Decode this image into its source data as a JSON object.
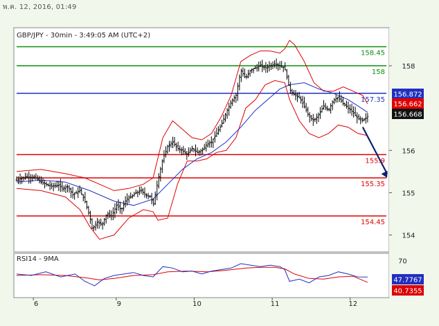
{
  "header": {
    "datestamp": "พ.ค. 12, 2016, 01:49",
    "symbol_info": "GBP/JPY - 30min - 3:49:05 AM (UTC+2)"
  },
  "colors": {
    "page_bg": "#f2f7ec",
    "plot_bg": "#ffffff",
    "candles": "#000000",
    "bollinger": "#dd0000",
    "moving_average": "#1f2fbf",
    "support": "#e00000",
    "pivot": "#1f2fbf",
    "resistance": "#0a8f0a",
    "arrow": "#0d1f6e",
    "rsi": "#1f2fbf",
    "rsi_ma": "#dd0000"
  },
  "chart_data": [
    {
      "type": "candlestick",
      "title": "GBP/JPY - 30min - 3:49:05 AM (UTC+2)",
      "ylim": [
        153.6,
        158.9
      ],
      "y_ticks": [
        154,
        155,
        156,
        158
      ],
      "y_tick_labels": [
        "154",
        "155",
        "156",
        "158"
      ],
      "x_tick_labels": [
        "6",
        "9",
        "10",
        "11",
        "12"
      ],
      "grid": false,
      "levels": [
        {
          "value": 158.45,
          "label": "158.45",
          "role": "resistance"
        },
        {
          "value": 158.0,
          "label": "158",
          "role": "resistance"
        },
        {
          "value": 157.35,
          "label": "157.35",
          "role": "pivot"
        },
        {
          "value": 155.9,
          "label": "155.9",
          "role": "support"
        },
        {
          "value": 155.35,
          "label": "155.35",
          "role": "support"
        },
        {
          "value": 154.45,
          "label": "154.45",
          "role": "support"
        }
      ],
      "price_badges": [
        {
          "label": "156.872",
          "value": 156.872,
          "role": "moving_average"
        },
        {
          "label": "156.662",
          "value": 156.662,
          "role": "bollinger"
        },
        {
          "label": "156.668",
          "value": 156.668,
          "role": "last_price"
        }
      ],
      "arrow": {
        "from": [
          142,
          156.55
        ],
        "to": [
          152,
          155.35
        ]
      },
      "x_positions_of_dates": [
        8,
        42,
        74,
        106,
        138
      ],
      "price_path": [
        [
          0,
          155.3
        ],
        [
          4,
          155.38
        ],
        [
          8,
          155.35
        ],
        [
          10,
          155.25
        ],
        [
          12,
          155.2
        ],
        [
          14,
          155.15
        ],
        [
          17,
          155.18
        ],
        [
          19,
          155.1
        ],
        [
          21,
          155.15
        ],
        [
          23,
          154.95
        ],
        [
          26,
          155.05
        ],
        [
          28,
          154.8
        ],
        [
          30,
          154.45
        ],
        [
          31,
          154.15
        ],
        [
          33,
          154.3
        ],
        [
          35,
          154.25
        ],
        [
          37,
          154.5
        ],
        [
          39,
          154.45
        ],
        [
          41,
          154.7
        ],
        [
          43,
          154.6
        ],
        [
          45,
          154.85
        ],
        [
          47,
          154.9
        ],
        [
          49,
          155.0
        ],
        [
          51,
          155.05
        ],
        [
          53,
          154.95
        ],
        [
          55,
          154.9
        ],
        [
          56,
          154.7
        ],
        [
          58,
          155.3
        ],
        [
          60,
          155.8
        ],
        [
          62,
          156.1
        ],
        [
          64,
          156.2
        ],
        [
          66,
          156.05
        ],
        [
          68,
          156.0
        ],
        [
          70,
          155.9
        ],
        [
          72,
          156.05
        ],
        [
          74,
          155.95
        ],
        [
          76,
          156.0
        ],
        [
          78,
          156.15
        ],
        [
          80,
          156.2
        ],
        [
          82,
          156.4
        ],
        [
          84,
          156.6
        ],
        [
          86,
          156.9
        ],
        [
          88,
          157.15
        ],
        [
          90,
          157.3
        ],
        [
          92,
          157.9
        ],
        [
          94,
          157.7
        ],
        [
          96,
          157.9
        ],
        [
          98,
          157.95
        ],
        [
          100,
          158.0
        ],
        [
          102,
          157.95
        ],
        [
          104,
          158.0
        ],
        [
          106,
          158.05
        ],
        [
          108,
          158.0
        ],
        [
          110,
          157.95
        ],
        [
          112,
          157.45
        ],
        [
          114,
          157.3
        ],
        [
          116,
          157.25
        ],
        [
          118,
          157.05
        ],
        [
          120,
          156.8
        ],
        [
          122,
          156.7
        ],
        [
          124,
          156.85
        ],
        [
          126,
          157.05
        ],
        [
          128,
          156.95
        ],
        [
          130,
          157.2
        ],
        [
          132,
          157.25
        ],
        [
          134,
          157.1
        ],
        [
          136,
          157.0
        ],
        [
          138,
          156.9
        ],
        [
          140,
          156.75
        ],
        [
          142,
          156.7
        ],
        [
          144,
          156.8
        ]
      ],
      "upper_band_path": [
        [
          0,
          155.5
        ],
        [
          10,
          155.55
        ],
        [
          20,
          155.45
        ],
        [
          28,
          155.35
        ],
        [
          34,
          155.2
        ],
        [
          40,
          155.05
        ],
        [
          46,
          155.1
        ],
        [
          52,
          155.2
        ],
        [
          56,
          155.35
        ],
        [
          60,
          156.3
        ],
        [
          64,
          156.7
        ],
        [
          68,
          156.5
        ],
        [
          72,
          156.3
        ],
        [
          76,
          156.25
        ],
        [
          80,
          156.4
        ],
        [
          84,
          156.8
        ],
        [
          88,
          157.3
        ],
        [
          92,
          158.1
        ],
        [
          96,
          158.25
        ],
        [
          100,
          158.35
        ],
        [
          104,
          158.35
        ],
        [
          108,
          158.3
        ],
        [
          110,
          158.4
        ],
        [
          112,
          158.6
        ],
        [
          114,
          158.5
        ],
        [
          118,
          158.1
        ],
        [
          122,
          157.6
        ],
        [
          126,
          157.4
        ],
        [
          130,
          157.4
        ],
        [
          134,
          157.5
        ],
        [
          138,
          157.4
        ],
        [
          142,
          157.3
        ],
        [
          144,
          157.1
        ]
      ],
      "lower_band_path": [
        [
          0,
          155.1
        ],
        [
          10,
          155.05
        ],
        [
          20,
          154.9
        ],
        [
          26,
          154.6
        ],
        [
          30,
          154.2
        ],
        [
          34,
          153.9
        ],
        [
          40,
          154.0
        ],
        [
          46,
          154.4
        ],
        [
          52,
          154.6
        ],
        [
          56,
          154.55
        ],
        [
          58,
          154.35
        ],
        [
          62,
          154.4
        ],
        [
          66,
          155.2
        ],
        [
          70,
          155.75
        ],
        [
          74,
          155.75
        ],
        [
          78,
          155.8
        ],
        [
          82,
          155.95
        ],
        [
          86,
          156.0
        ],
        [
          90,
          156.3
        ],
        [
          94,
          157.0
        ],
        [
          98,
          157.2
        ],
        [
          102,
          157.55
        ],
        [
          106,
          157.65
        ],
        [
          110,
          157.6
        ],
        [
          112,
          157.2
        ],
        [
          116,
          156.7
        ],
        [
          120,
          156.4
        ],
        [
          124,
          156.3
        ],
        [
          128,
          156.4
        ],
        [
          132,
          156.6
        ],
        [
          136,
          156.55
        ],
        [
          140,
          156.4
        ],
        [
          144,
          156.35
        ]
      ],
      "moving_average_path": [
        [
          0,
          155.25
        ],
        [
          10,
          155.3
        ],
        [
          20,
          155.25
        ],
        [
          30,
          155.05
        ],
        [
          40,
          154.8
        ],
        [
          48,
          154.7
        ],
        [
          56,
          154.85
        ],
        [
          62,
          155.2
        ],
        [
          68,
          155.55
        ],
        [
          74,
          155.8
        ],
        [
          80,
          155.95
        ],
        [
          86,
          156.2
        ],
        [
          92,
          156.55
        ],
        [
          98,
          156.95
        ],
        [
          104,
          157.25
        ],
        [
          108,
          157.45
        ],
        [
          112,
          157.55
        ],
        [
          118,
          157.6
        ],
        [
          124,
          157.45
        ],
        [
          130,
          157.35
        ],
        [
          136,
          157.2
        ],
        [
          140,
          157.05
        ],
        [
          144,
          156.9
        ]
      ]
    },
    {
      "type": "line",
      "title": "RSI14 - 9MA",
      "ylim": [
        20,
        80
      ],
      "y_tick_labels": [
        "70"
      ],
      "value_badges": [
        {
          "label": "47.7767",
          "value": 47.7767,
          "role": "rsi"
        },
        {
          "label": "40.7355",
          "value": 40.7355,
          "role": "rsi_ma"
        }
      ],
      "series": [
        {
          "role": "rsi",
          "path": [
            [
              0,
              52
            ],
            [
              6,
              50
            ],
            [
              12,
              55
            ],
            [
              18,
              48
            ],
            [
              24,
              52
            ],
            [
              28,
              42
            ],
            [
              32,
              36
            ],
            [
              36,
              46
            ],
            [
              40,
              50
            ],
            [
              44,
              52
            ],
            [
              48,
              54
            ],
            [
              52,
              50
            ],
            [
              56,
              48
            ],
            [
              60,
              62
            ],
            [
              64,
              60
            ],
            [
              68,
              55
            ],
            [
              72,
              56
            ],
            [
              76,
              52
            ],
            [
              80,
              56
            ],
            [
              84,
              58
            ],
            [
              88,
              60
            ],
            [
              92,
              66
            ],
            [
              96,
              64
            ],
            [
              100,
              62
            ],
            [
              104,
              64
            ],
            [
              108,
              62
            ],
            [
              110,
              58
            ],
            [
              112,
              42
            ],
            [
              116,
              45
            ],
            [
              120,
              40
            ],
            [
              124,
              48
            ],
            [
              128,
              50
            ],
            [
              132,
              55
            ],
            [
              136,
              52
            ],
            [
              140,
              48
            ],
            [
              144,
              47.8
            ]
          ]
        },
        {
          "role": "rsi_ma",
          "path": [
            [
              0,
              50
            ],
            [
              10,
              51
            ],
            [
              20,
              50
            ],
            [
              28,
              47
            ],
            [
              34,
              44
            ],
            [
              40,
              46
            ],
            [
              48,
              50
            ],
            [
              56,
              51
            ],
            [
              62,
              55
            ],
            [
              70,
              56
            ],
            [
              78,
              55
            ],
            [
              86,
              57
            ],
            [
              94,
              60
            ],
            [
              100,
              61
            ],
            [
              106,
              61
            ],
            [
              110,
              59
            ],
            [
              114,
              52
            ],
            [
              120,
              46
            ],
            [
              126,
              45
            ],
            [
              132,
              48
            ],
            [
              138,
              49
            ],
            [
              144,
              40.7
            ]
          ]
        }
      ]
    }
  ]
}
